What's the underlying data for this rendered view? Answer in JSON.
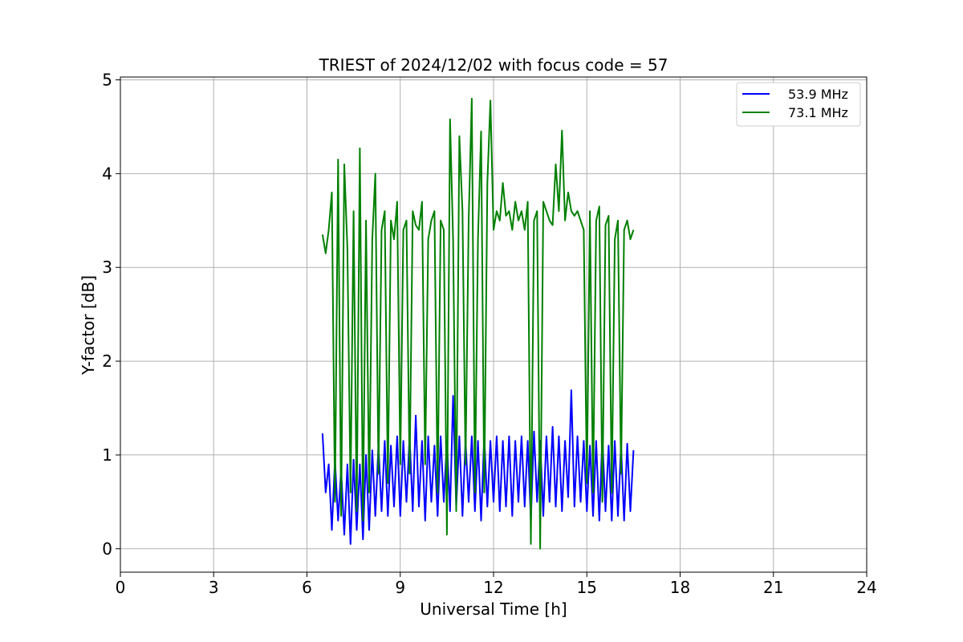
{
  "chart_data": {
    "type": "line",
    "title": "TRIEST of 2024/12/02 with focus code = 57",
    "xlabel": "Universal Time [h]",
    "ylabel": "Y-factor [dB]",
    "xlim": [
      0,
      24
    ],
    "ylim": [
      -0.25,
      5.03
    ],
    "xticks": [
      0,
      3,
      6,
      9,
      12,
      15,
      18,
      21,
      24
    ],
    "yticks": [
      0,
      1,
      2,
      3,
      4,
      5
    ],
    "grid": true,
    "legend_position": "top-right",
    "series": [
      {
        "name": "53.9 MHz",
        "color": "#0000ff",
        "x": [
          6.5,
          6.6,
          6.7,
          6.8,
          6.9,
          7.0,
          7.1,
          7.2,
          7.3,
          7.4,
          7.5,
          7.6,
          7.7,
          7.8,
          7.9,
          8.0,
          8.1,
          8.2,
          8.3,
          8.4,
          8.5,
          8.6,
          8.7,
          8.8,
          8.9,
          9.0,
          9.1,
          9.2,
          9.3,
          9.4,
          9.5,
          9.6,
          9.7,
          9.8,
          9.9,
          10.0,
          10.1,
          10.2,
          10.3,
          10.4,
          10.5,
          10.6,
          10.7,
          10.8,
          10.9,
          11.0,
          11.1,
          11.2,
          11.3,
          11.4,
          11.5,
          11.6,
          11.7,
          11.8,
          11.9,
          12.0,
          12.1,
          12.2,
          12.3,
          12.4,
          12.5,
          12.6,
          12.7,
          12.8,
          12.9,
          13.0,
          13.1,
          13.2,
          13.3,
          13.4,
          13.5,
          13.6,
          13.7,
          13.8,
          13.9,
          14.0,
          14.1,
          14.2,
          14.3,
          14.4,
          14.5,
          14.6,
          14.7,
          14.8,
          14.9,
          15.0,
          15.1,
          15.2,
          15.3,
          15.4,
          15.5,
          15.6,
          15.7,
          15.8,
          15.9,
          16.0,
          16.1,
          16.2,
          16.3,
          16.4,
          16.5
        ],
        "y": [
          1.23,
          0.6,
          0.9,
          0.2,
          0.95,
          0.3,
          0.85,
          0.15,
          0.9,
          0.05,
          0.95,
          0.2,
          0.9,
          0.1,
          1.0,
          0.2,
          1.05,
          0.35,
          1.1,
          0.4,
          1.15,
          0.35,
          1.1,
          0.45,
          1.2,
          0.35,
          1.15,
          0.5,
          1.2,
          0.4,
          1.42,
          0.45,
          1.15,
          0.3,
          1.2,
          0.5,
          1.1,
          0.35,
          1.2,
          0.5,
          1.15,
          0.4,
          1.63,
          0.45,
          1.2,
          0.35,
          1.15,
          0.5,
          1.2,
          0.4,
          1.15,
          0.3,
          1.2,
          0.45,
          1.15,
          0.5,
          1.2,
          0.4,
          1.15,
          0.45,
          1.2,
          0.35,
          1.15,
          0.5,
          1.2,
          0.45,
          1.15,
          0.3,
          1.25,
          0.5,
          1.15,
          0.35,
          1.2,
          0.5,
          1.3,
          0.45,
          1.2,
          0.4,
          1.15,
          0.55,
          1.69,
          0.45,
          1.2,
          0.5,
          1.15,
          0.4,
          1.1,
          0.35,
          1.15,
          0.3,
          1.2,
          0.4,
          1.1,
          0.3,
          1.15,
          0.35,
          1.1,
          0.3,
          1.12,
          0.4,
          1.05
        ]
      },
      {
        "name": "73.1 MHz",
        "color": "#008000",
        "x": [
          6.5,
          6.6,
          6.7,
          6.8,
          6.9,
          7.0,
          7.1,
          7.2,
          7.3,
          7.4,
          7.5,
          7.6,
          7.7,
          7.8,
          7.9,
          8.0,
          8.1,
          8.2,
          8.3,
          8.4,
          8.5,
          8.6,
          8.7,
          8.8,
          8.9,
          9.0,
          9.1,
          9.2,
          9.3,
          9.4,
          9.5,
          9.6,
          9.7,
          9.8,
          9.9,
          10.0,
          10.1,
          10.2,
          10.3,
          10.4,
          10.5,
          10.6,
          10.7,
          10.8,
          10.9,
          11.0,
          11.1,
          11.2,
          11.3,
          11.4,
          11.5,
          11.6,
          11.7,
          11.8,
          11.9,
          12.0,
          12.1,
          12.2,
          12.3,
          12.4,
          12.5,
          12.6,
          12.7,
          12.8,
          12.9,
          13.0,
          13.1,
          13.2,
          13.3,
          13.4,
          13.5,
          13.6,
          13.7,
          13.8,
          13.9,
          14.0,
          14.1,
          14.2,
          14.3,
          14.4,
          14.5,
          14.6,
          14.7,
          14.8,
          14.9,
          15.0,
          15.1,
          15.2,
          15.3,
          15.4,
          15.5,
          15.6,
          15.7,
          15.8,
          15.9,
          16.0,
          16.1,
          16.2,
          16.3,
          16.4,
          16.5
        ],
        "y": [
          3.35,
          3.15,
          3.4,
          3.8,
          0.5,
          4.15,
          0.35,
          4.1,
          3.2,
          0.6,
          3.6,
          0.4,
          4.27,
          0.3,
          3.5,
          0.6,
          3.3,
          4.0,
          0.8,
          3.4,
          3.6,
          0.7,
          3.5,
          3.3,
          3.7,
          0.9,
          3.4,
          3.5,
          0.8,
          3.6,
          3.45,
          3.4,
          3.7,
          0.9,
          3.3,
          3.5,
          3.6,
          0.6,
          3.5,
          3.4,
          0.15,
          4.58,
          3.3,
          0.4,
          4.4,
          3.6,
          0.9,
          3.5,
          4.8,
          0.6,
          3.3,
          4.45,
          0.6,
          3.9,
          4.78,
          3.4,
          3.6,
          3.5,
          3.9,
          3.55,
          3.6,
          3.4,
          3.7,
          3.5,
          3.6,
          3.4,
          3.7,
          0.05,
          3.5,
          3.6,
          0.0,
          3.7,
          3.6,
          3.5,
          3.45,
          4.1,
          3.6,
          4.46,
          3.5,
          3.8,
          3.6,
          3.55,
          3.6,
          3.5,
          3.4,
          0.7,
          3.6,
          0.6,
          3.5,
          3.65,
          0.5,
          3.45,
          3.55,
          0.6,
          3.3,
          3.5,
          0.8,
          3.4,
          3.5,
          3.3,
          3.4
        ]
      }
    ]
  }
}
